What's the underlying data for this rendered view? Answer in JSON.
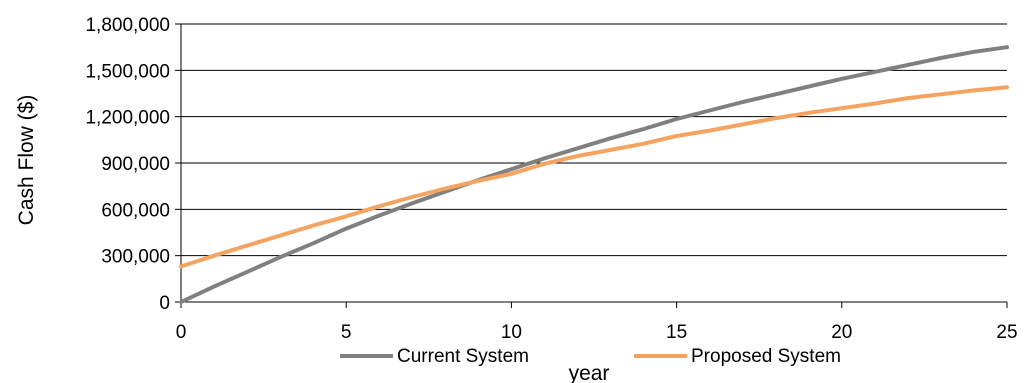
{
  "chart_data": {
    "type": "line",
    "title": "",
    "xlabel": "year",
    "ylabel": "Cash Flow ($)",
    "xlim": [
      0,
      25
    ],
    "ylim": [
      0,
      1800000
    ],
    "x_ticks": [
      0,
      5,
      10,
      15,
      20,
      25
    ],
    "x_tick_labels": [
      "0",
      "5",
      "10",
      "15",
      "20",
      "25"
    ],
    "y_ticks": [
      0,
      300000,
      600000,
      900000,
      1200000,
      1500000,
      1800000
    ],
    "y_tick_labels": [
      "0",
      "300,000",
      "600,000",
      "900,000",
      "1,200,000",
      "1,500,000",
      "1,800,000"
    ],
    "grid": "horizontal",
    "legend_position": "bottom",
    "series": [
      {
        "name": "Current System",
        "color": "#808080",
        "x": [
          0,
          1,
          2,
          3,
          4,
          5,
          6,
          7,
          8,
          9,
          10,
          11,
          12,
          13,
          14,
          15,
          16,
          17,
          18,
          19,
          20,
          21,
          22,
          23,
          24,
          25
        ],
        "values": [
          0,
          100000,
          195000,
          290000,
          380000,
          475000,
          560000,
          640000,
          715000,
          790000,
          860000,
          930000,
          995000,
          1060000,
          1120000,
          1185000,
          1240000,
          1295000,
          1345000,
          1395000,
          1445000,
          1490000,
          1535000,
          1580000,
          1620000,
          1650000
        ]
      },
      {
        "name": "Proposed System",
        "color": "#F4A460",
        "x": [
          0,
          1,
          2,
          3,
          4,
          5,
          6,
          7,
          8,
          9,
          10,
          11,
          12,
          13,
          14,
          15,
          16,
          17,
          18,
          19,
          20,
          21,
          22,
          23,
          24,
          25
        ],
        "values": [
          230000,
          300000,
          365000,
          430000,
          495000,
          555000,
          620000,
          680000,
          735000,
          785000,
          830000,
          895000,
          945000,
          985000,
          1025000,
          1075000,
          1110000,
          1150000,
          1190000,
          1225000,
          1255000,
          1285000,
          1320000,
          1345000,
          1370000,
          1390000
        ]
      }
    ]
  }
}
